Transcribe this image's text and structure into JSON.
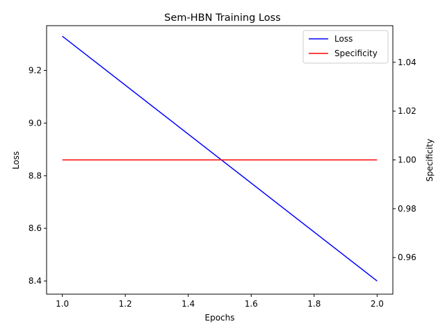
{
  "chart_data": {
    "type": "line",
    "title": "Sem-HBN Training Loss",
    "xlabel": "Epochs",
    "ylabel_left": "Loss",
    "ylabel_right": "Specificity",
    "xlim": [
      0.95,
      2.05
    ],
    "ylim_left": [
      8.35,
      9.37
    ],
    "ylim_right": [
      0.945,
      1.055
    ],
    "x_ticks": [
      1.0,
      1.2,
      1.4,
      1.6,
      1.8,
      2.0
    ],
    "y_ticks_left": [
      8.4,
      8.6,
      8.8,
      9.0,
      9.2
    ],
    "y_ticks_right": [
      0.96,
      0.98,
      1.0,
      1.02,
      1.04
    ],
    "x": [
      1.0,
      2.0
    ],
    "series": [
      {
        "name": "Loss",
        "axis": "left",
        "color": "#0000ff",
        "values": [
          9.33,
          8.4
        ]
      },
      {
        "name": "Specificity",
        "axis": "right",
        "color": "#ff0000",
        "values": [
          1.0,
          1.0
        ]
      }
    ],
    "grid": false,
    "legend_position": "top-right"
  }
}
